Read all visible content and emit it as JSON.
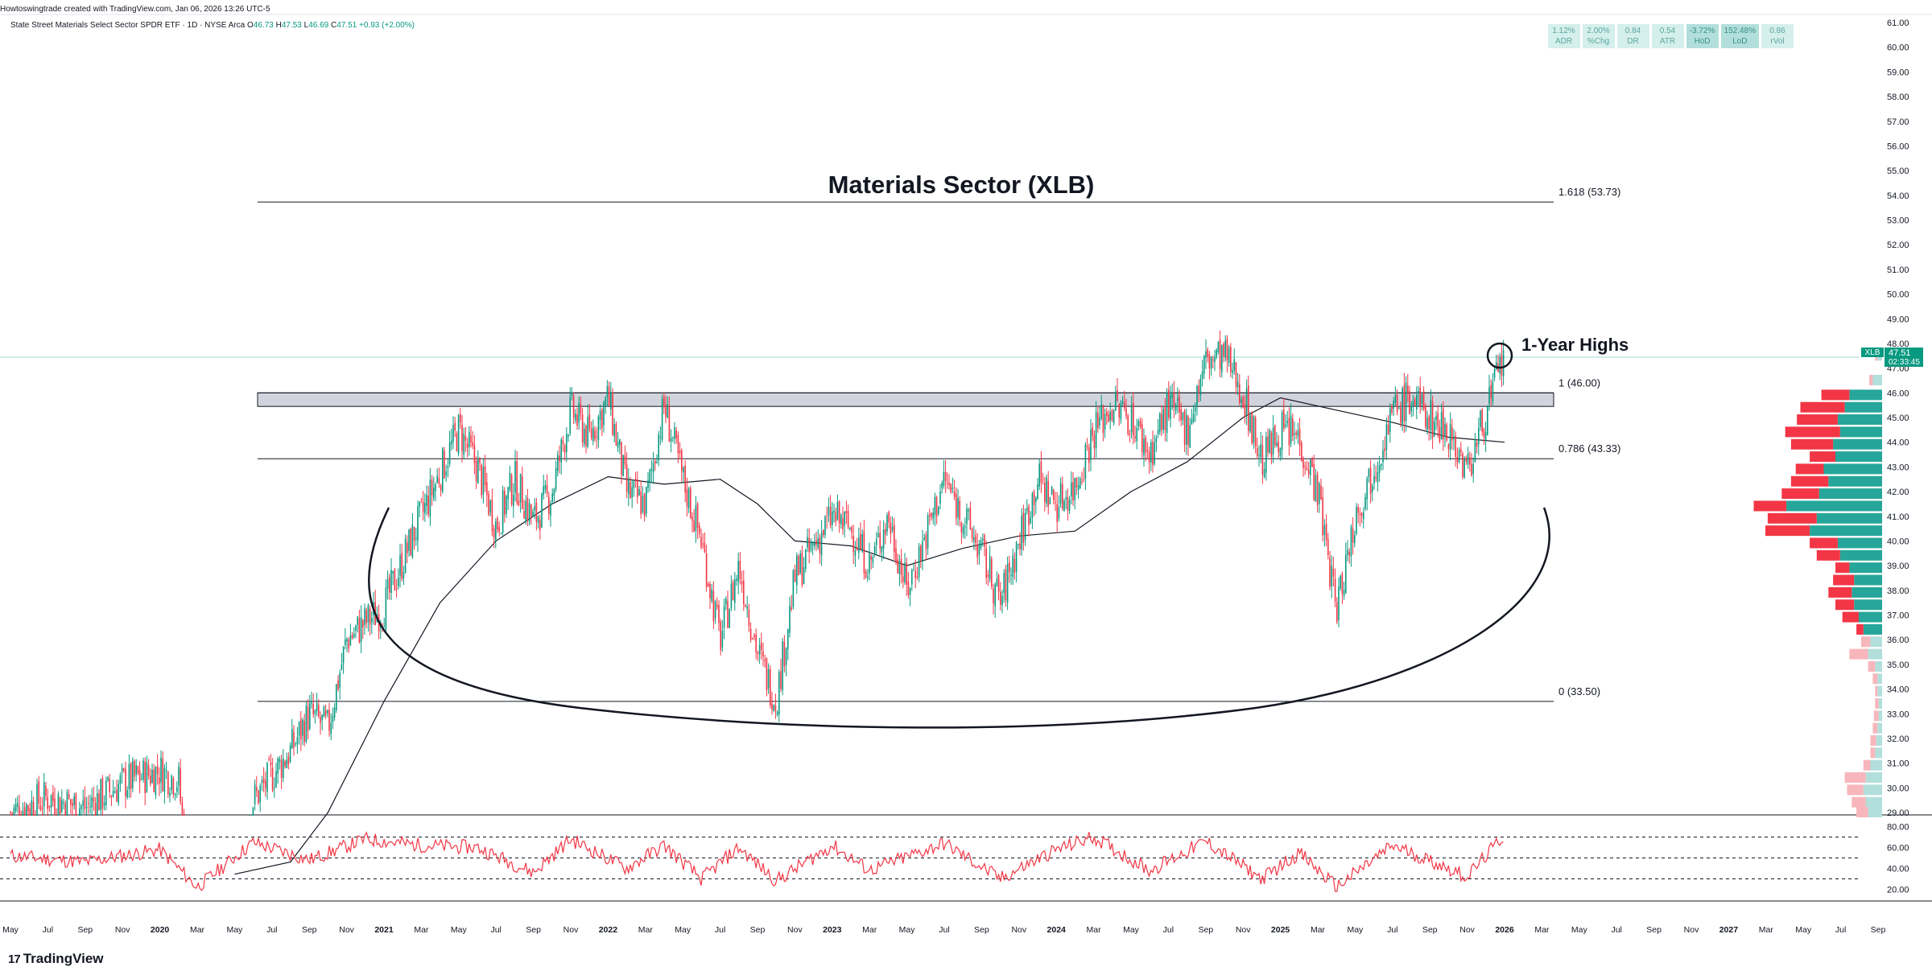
{
  "header": {
    "created_by": "Howtoswingtrade created with TradingView.com, Jan 06, 2026 13:26 UTC-5"
  },
  "symbol": {
    "description": "State Street Materials Select Sector SPDR ETF · 1D · NYSE Arca",
    "open_label": "O",
    "open": "46.73",
    "high_label": "H",
    "high": "47.53",
    "low_label": "L",
    "low": "46.69",
    "close_label": "C",
    "close": "47.51",
    "change": "+0.93 (+2.00%)"
  },
  "stats": [
    {
      "value": "1.12%",
      "label": "ADR"
    },
    {
      "value": "2.00%",
      "label": "%Chg"
    },
    {
      "value": "0.84",
      "label": "DR"
    },
    {
      "value": "0.54",
      "label": "ATR"
    },
    {
      "value": "-3.72%",
      "label": "HoD"
    },
    {
      "value": "152.48%",
      "label": "LoD"
    },
    {
      "value": "0.86",
      "label": "rVol"
    }
  ],
  "footer": {
    "brand": "TradingView",
    "logo_text": "17"
  },
  "colors": {
    "up": "#089981",
    "down": "#f23645",
    "rsi": "#f23645",
    "ma": "#131722",
    "profile_up": "#26a69a",
    "profile_down": "#f23645",
    "profile_up_light": "#b2dfdb",
    "profile_down_light": "#f7b6bb",
    "price_tag": "#089981"
  },
  "chart_data": {
    "type": "candlestick",
    "title": "Materials Sector (XLB)",
    "annotation": "1-Year Highs",
    "symbol_tag": "XLB",
    "last_price": "47.51",
    "countdown": "02:33:45",
    "price_axis": {
      "min": 29.0,
      "max": 61.0,
      "ticks": [
        "61.00",
        "60.00",
        "59.00",
        "58.00",
        "57.00",
        "56.00",
        "55.00",
        "54.00",
        "53.00",
        "52.00",
        "51.00",
        "50.00",
        "49.00",
        "48.00",
        "47.00",
        "46.00",
        "45.00",
        "44.00",
        "43.00",
        "42.00",
        "41.00",
        "40.00",
        "39.00",
        "38.00",
        "37.00",
        "36.00",
        "35.00",
        "34.00",
        "33.00",
        "32.00",
        "31.00",
        "30.00",
        "29.00"
      ]
    },
    "time_axis": [
      "May",
      "Jul",
      "Sep",
      "Nov",
      "2020",
      "Mar",
      "May",
      "Jul",
      "Sep",
      "Nov",
      "2021",
      "Mar",
      "May",
      "Jul",
      "Sep",
      "Nov",
      "2022",
      "Mar",
      "May",
      "Jul",
      "Sep",
      "Nov",
      "2023",
      "Mar",
      "May",
      "Jul",
      "Sep",
      "Nov",
      "2024",
      "Mar",
      "May",
      "Jul",
      "Sep",
      "Nov",
      "2025",
      "Mar",
      "May",
      "Jul",
      "Sep",
      "Nov",
      "2026",
      "Mar",
      "May",
      "Jul",
      "Sep",
      "Nov",
      "2027",
      "Mar",
      "May",
      "Jul",
      "Sep"
    ],
    "time_axis_bold": [
      "2020",
      "2021",
      "2022",
      "2023",
      "2024",
      "2025",
      "2026",
      "2027"
    ],
    "fib_levels": [
      {
        "label": "1.618 (53.73)",
        "value": 53.73
      },
      {
        "label": "1 (46.00)",
        "value": 46.0
      },
      {
        "label": "0.786 (43.33)",
        "value": 43.33
      },
      {
        "label": "0 (33.50)",
        "value": 33.5
      }
    ],
    "resistance_zone": [
      45.45,
      46.0
    ],
    "price_path": [
      [
        "2019-05",
        29.0
      ],
      [
        "2019-07",
        29.6
      ],
      [
        "2019-09",
        29.2
      ],
      [
        "2019-11",
        30.2
      ],
      [
        "2020-01",
        30.7
      ],
      [
        "2020-02",
        30.3
      ],
      [
        "2020-03",
        22.5
      ],
      [
        "2020-05",
        26.0
      ],
      [
        "2020-06",
        29.5
      ],
      [
        "2020-08",
        31.5
      ],
      [
        "2020-09",
        33.0
      ],
      [
        "2020-10",
        32.4
      ],
      [
        "2020-11",
        36.0
      ],
      [
        "2020-12",
        36.7
      ],
      [
        "2021-01",
        37.3
      ],
      [
        "2021-02",
        39.2
      ],
      [
        "2021-03",
        41.0
      ],
      [
        "2021-05",
        44.5
      ],
      [
        "2021-06",
        43.0
      ],
      [
        "2021-07",
        40.6
      ],
      [
        "2021-08",
        42.5
      ],
      [
        "2021-09",
        40.8
      ],
      [
        "2021-10",
        42.0
      ],
      [
        "2021-11",
        45.3
      ],
      [
        "2021-12",
        44.2
      ],
      [
        "2022-01",
        45.8
      ],
      [
        "2022-02",
        42.0
      ],
      [
        "2022-03",
        41.5
      ],
      [
        "2022-04",
        45.5
      ],
      [
        "2022-05",
        42.5
      ],
      [
        "2022-06",
        40.0
      ],
      [
        "2022-07",
        36.0
      ],
      [
        "2022-08",
        39.0
      ],
      [
        "2022-09",
        35.5
      ],
      [
        "2022-10",
        33.5
      ],
      [
        "2022-11",
        38.5
      ],
      [
        "2022-12",
        39.8
      ],
      [
        "2023-01",
        41.0
      ],
      [
        "2023-02",
        40.5
      ],
      [
        "2023-03",
        39.0
      ],
      [
        "2023-04",
        41.0
      ],
      [
        "2023-05",
        38.0
      ],
      [
        "2023-06",
        40.2
      ],
      [
        "2023-07",
        42.5
      ],
      [
        "2023-08",
        41.0
      ],
      [
        "2023-09",
        39.5
      ],
      [
        "2023-10",
        37.5
      ],
      [
        "2023-11",
        40.0
      ],
      [
        "2023-12",
        42.5
      ],
      [
        "2024-01",
        41.5
      ],
      [
        "2024-02",
        42.2
      ],
      [
        "2024-03",
        44.5
      ],
      [
        "2024-04",
        45.5
      ],
      [
        "2024-05",
        45.0
      ],
      [
        "2024-06",
        43.5
      ],
      [
        "2024-07",
        45.5
      ],
      [
        "2024-08",
        44.5
      ],
      [
        "2024-09",
        47.3
      ],
      [
        "2024-10",
        47.5
      ],
      [
        "2024-11",
        46.0
      ],
      [
        "2024-12",
        43.2
      ],
      [
        "2025-01",
        44.5
      ],
      [
        "2025-02",
        44.2
      ],
      [
        "2025-03",
        42.0
      ],
      [
        "2025-04",
        37.2
      ],
      [
        "2025-05",
        41.0
      ],
      [
        "2025-06",
        43.0
      ],
      [
        "2025-07",
        45.2
      ],
      [
        "2025-08",
        45.8
      ],
      [
        "2025-09",
        45.0
      ],
      [
        "2025-10",
        44.5
      ],
      [
        "2025-11",
        42.8
      ],
      [
        "2025-12",
        45.2
      ],
      [
        "2026-01",
        47.51
      ]
    ],
    "moving_average": [
      [
        "2020-05",
        26.5
      ],
      [
        "2020-08",
        27.0
      ],
      [
        "2020-10",
        29.0
      ],
      [
        "2021-01",
        33.5
      ],
      [
        "2021-04",
        37.5
      ],
      [
        "2021-07",
        40.0
      ],
      [
        "2021-10",
        41.5
      ],
      [
        "2022-01",
        42.6
      ],
      [
        "2022-04",
        42.3
      ],
      [
        "2022-07",
        42.5
      ],
      [
        "2022-09",
        41.5
      ],
      [
        "2022-11",
        40.0
      ],
      [
        "2023-02",
        39.8
      ],
      [
        "2023-05",
        39.0
      ],
      [
        "2023-08",
        39.7
      ],
      [
        "2023-11",
        40.2
      ],
      [
        "2024-02",
        40.4
      ],
      [
        "2024-05",
        42.0
      ],
      [
        "2024-08",
        43.2
      ],
      [
        "2024-11",
        45.0
      ],
      [
        "2025-01",
        45.8
      ],
      [
        "2025-04",
        45.3
      ],
      [
        "2025-07",
        44.8
      ],
      [
        "2025-10",
        44.2
      ],
      [
        "2026-01",
        44.0
      ]
    ],
    "rsi": {
      "axis_ticks": [
        "80.00",
        "60.00",
        "40.00",
        "20.00"
      ],
      "min": 15,
      "max": 85,
      "levels": [
        70,
        50,
        30
      ],
      "path": [
        [
          "2019-05",
          52
        ],
        [
          "2019-09",
          46
        ],
        [
          "2020-01",
          58
        ],
        [
          "2020-03",
          22
        ],
        [
          "2020-06",
          65
        ],
        [
          "2020-09",
          48
        ],
        [
          "2020-12",
          68
        ],
        [
          "2021-03",
          62
        ],
        [
          "2021-06",
          60
        ],
        [
          "2021-09",
          36
        ],
        [
          "2021-11",
          68
        ],
        [
          "2022-02",
          40
        ],
        [
          "2022-04",
          62
        ],
        [
          "2022-06",
          30
        ],
        [
          "2022-08",
          60
        ],
        [
          "2022-10",
          28
        ],
        [
          "2023-01",
          62
        ],
        [
          "2023-03",
          38
        ],
        [
          "2023-07",
          64
        ],
        [
          "2023-10",
          30
        ],
        [
          "2024-01",
          58
        ],
        [
          "2024-03",
          70
        ],
        [
          "2024-06",
          38
        ],
        [
          "2024-09",
          66
        ],
        [
          "2024-12",
          30
        ],
        [
          "2025-02",
          55
        ],
        [
          "2025-04",
          22
        ],
        [
          "2025-07",
          62
        ],
        [
          "2025-10",
          40
        ],
        [
          "2025-11",
          32
        ],
        [
          "2026-01",
          72
        ]
      ]
    },
    "volume_profile": [
      {
        "price": 47.5,
        "up": 4,
        "down": 2,
        "light": true
      },
      {
        "price": 46.5,
        "up": 8,
        "down": 3,
        "light": true
      },
      {
        "price": 45.9,
        "up": 28,
        "down": 24
      },
      {
        "price": 45.4,
        "up": 32,
        "down": 38
      },
      {
        "price": 44.9,
        "up": 38,
        "down": 35
      },
      {
        "price": 44.4,
        "up": 36,
        "down": 47
      },
      {
        "price": 43.9,
        "up": 42,
        "down": 36
      },
      {
        "price": 43.4,
        "up": 40,
        "down": 22
      },
      {
        "price": 42.9,
        "up": 50,
        "down": 24
      },
      {
        "price": 42.4,
        "up": 46,
        "down": 32
      },
      {
        "price": 41.9,
        "up": 54,
        "down": 32
      },
      {
        "price": 41.4,
        "up": 82,
        "down": 28
      },
      {
        "price": 40.9,
        "up": 56,
        "down": 42
      },
      {
        "price": 40.4,
        "up": 62,
        "down": 38
      },
      {
        "price": 39.9,
        "up": 38,
        "down": 24
      },
      {
        "price": 39.4,
        "up": 36,
        "down": 20
      },
      {
        "price": 38.9,
        "up": 28,
        "down": 12
      },
      {
        "price": 38.4,
        "up": 24,
        "down": 18
      },
      {
        "price": 37.9,
        "up": 26,
        "down": 20
      },
      {
        "price": 37.4,
        "up": 24,
        "down": 16
      },
      {
        "price": 36.9,
        "up": 20,
        "down": 14
      },
      {
        "price": 36.4,
        "up": 16,
        "down": 6
      },
      {
        "price": 35.9,
        "up": 10,
        "down": 8,
        "light": true
      },
      {
        "price": 35.4,
        "up": 12,
        "down": 16,
        "light": true
      },
      {
        "price": 34.9,
        "up": 6,
        "down": 6,
        "light": true
      },
      {
        "price": 34.4,
        "up": 4,
        "down": 4,
        "light": true
      },
      {
        "price": 33.9,
        "up": 4,
        "down": 2,
        "light": true
      },
      {
        "price": 33.4,
        "up": 3,
        "down": 3,
        "light": true
      },
      {
        "price": 32.9,
        "up": 3,
        "down": 4,
        "light": true
      },
      {
        "price": 32.4,
        "up": 4,
        "down": 4,
        "light": true
      },
      {
        "price": 31.9,
        "up": 5,
        "down": 5,
        "light": true
      },
      {
        "price": 31.4,
        "up": 6,
        "down": 4,
        "light": true
      },
      {
        "price": 30.9,
        "up": 10,
        "down": 6,
        "light": true
      },
      {
        "price": 30.4,
        "up": 14,
        "down": 18,
        "light": true
      },
      {
        "price": 29.9,
        "up": 16,
        "down": 14,
        "light": true
      },
      {
        "price": 29.4,
        "up": 14,
        "down": 12,
        "light": true
      },
      {
        "price": 29.0,
        "up": 12,
        "down": 10,
        "light": true
      }
    ]
  }
}
